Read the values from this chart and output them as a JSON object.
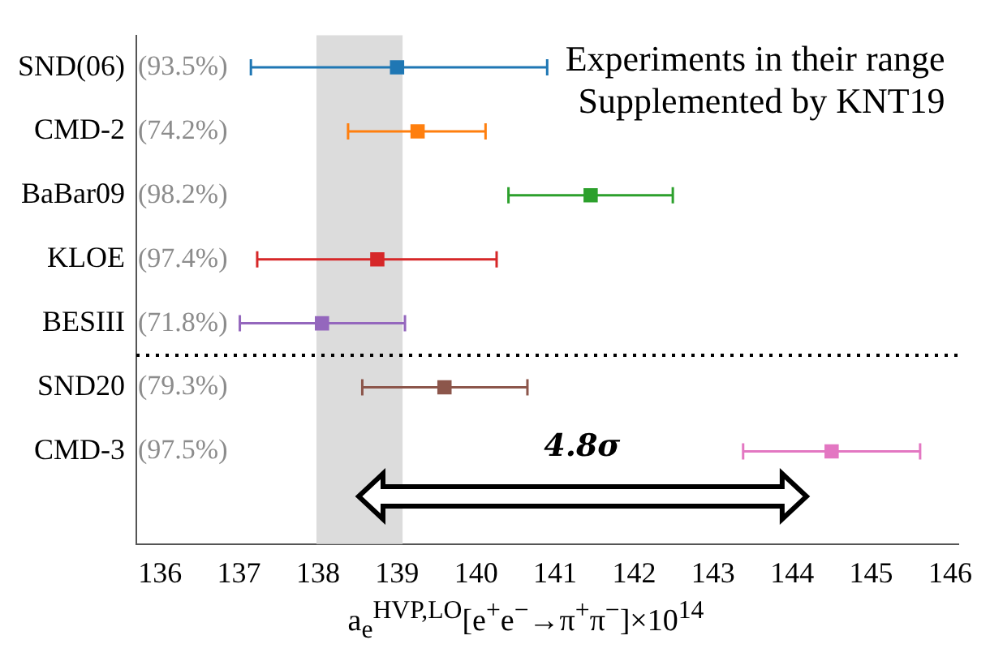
{
  "chart_data": {
    "type": "scatter",
    "title": "Experiments in their range\nSupplemented by KNT19",
    "xlabel": "a$_{e}$$^{HVP,LO}$[e$^{+}$e$^{−}$→π$^{+}$π$^{−}$]×10$^{14}$",
    "categories": [
      "SND(06)",
      "CMD-2",
      "BaBar09",
      "KLOE",
      "BESIII",
      "SND20",
      "CMD-3"
    ],
    "series": [
      {
        "color": "#1f77b4",
        "values": [
          139.0,
          null,
          null,
          null,
          null,
          null,
          null
        ],
        "errors": [
          [
            137.15,
            140.9
          ],
          null,
          null,
          null,
          null,
          null,
          null
        ]
      },
      {
        "color": "#ff7f0e",
        "values": [
          null,
          139.26,
          null,
          null,
          null,
          null,
          null
        ],
        "errors": [
          null,
          [
            138.38,
            140.12
          ],
          null,
          null,
          null,
          null,
          null
        ]
      },
      {
        "color": "#2ca02c",
        "values": [
          null,
          null,
          141.45,
          null,
          null,
          null,
          null
        ],
        "errors": [
          null,
          null,
          [
            140.41,
            142.49
          ],
          null,
          null,
          null,
          null
        ]
      },
      {
        "color": "#d62728",
        "values": [
          null,
          null,
          null,
          138.75,
          null,
          null,
          null
        ],
        "errors": [
          null,
          null,
          null,
          [
            137.23,
            140.26
          ],
          null,
          null,
          null
        ]
      },
      {
        "color": "#9467bd",
        "values": [
          null,
          null,
          null,
          null,
          138.05,
          null,
          null
        ],
        "errors": [
          null,
          null,
          null,
          null,
          [
            137.01,
            139.1
          ],
          null,
          null
        ]
      },
      {
        "color": "#8c564b",
        "values": [
          null,
          null,
          null,
          null,
          null,
          139.6,
          null
        ],
        "errors": [
          null,
          null,
          null,
          null,
          null,
          [
            138.56,
            140.65
          ],
          null
        ]
      },
      {
        "color": "#e377c2",
        "values": [
          null,
          null,
          null,
          null,
          null,
          null,
          144.5
        ],
        "errors": [
          null,
          null,
          null,
          null,
          null,
          null,
          [
            143.38,
            145.62
          ]
        ]
      }
    ],
    "xlim": [
      135.7,
      146.1
    ],
    "xticks": [
      136,
      137,
      138,
      139,
      140,
      141,
      142,
      143,
      144,
      145,
      146
    ],
    "orientation": "horizontal",
    "marker": "square",
    "grid": false,
    "legend": false,
    "bands": [
      {
        "axis": "x",
        "from": 137.98,
        "to": 139.07,
        "color": "#dcdcdc"
      }
    ],
    "annotations": [
      "(93.5%)",
      "(74.2%)",
      "(98.2%)",
      "(97.4%)",
      "(71.8%)",
      "(79.3%)",
      "(97.5%)",
      "4.8σ"
    ]
  }
}
